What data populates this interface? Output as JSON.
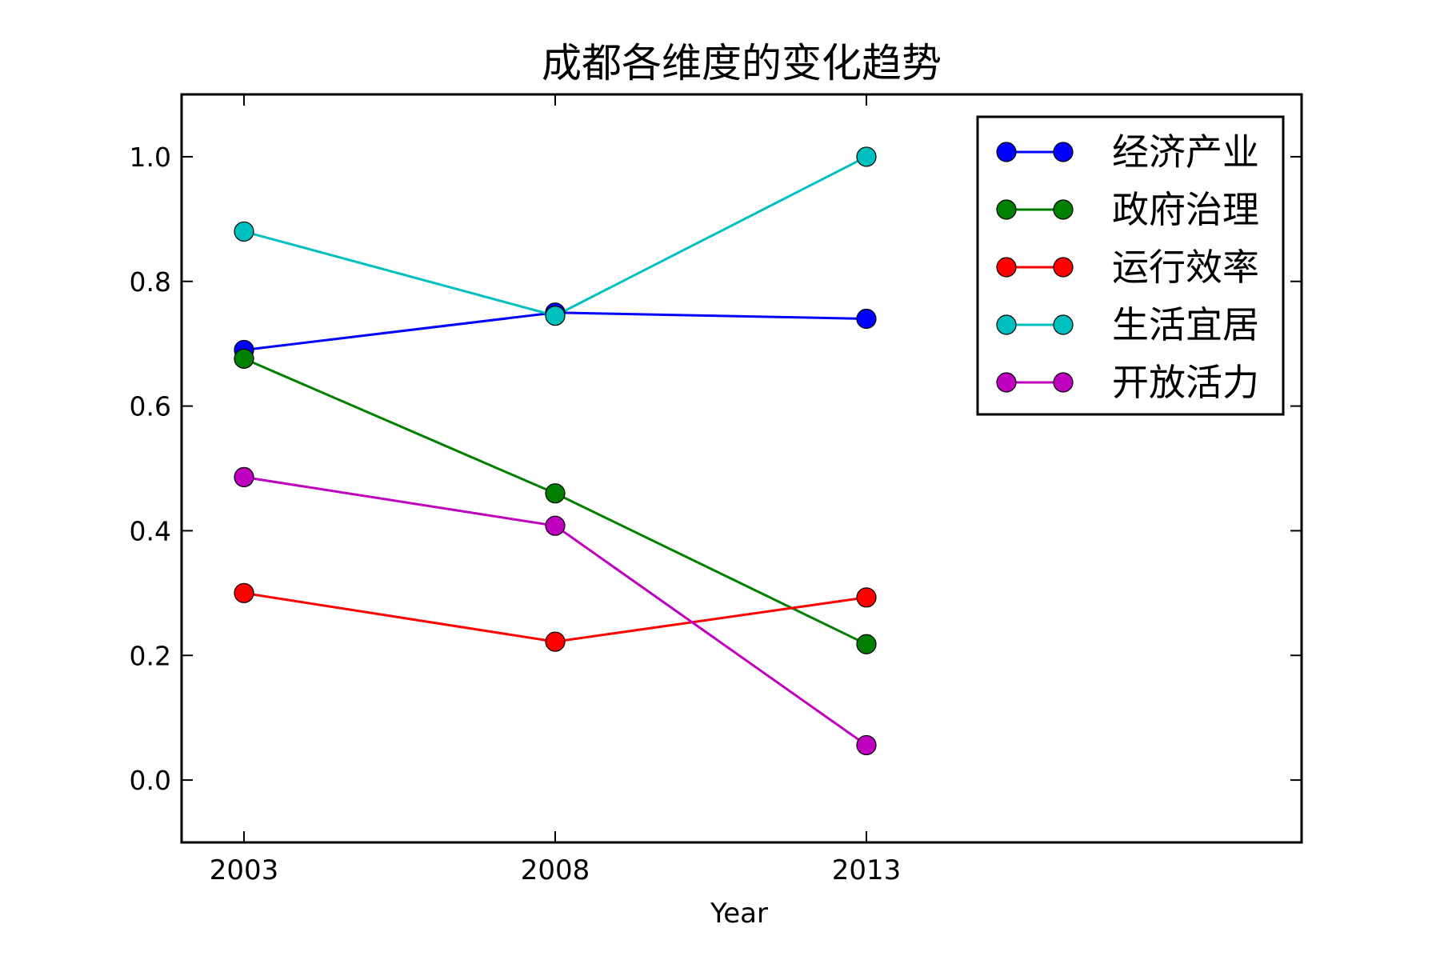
{
  "chart_data": {
    "type": "line",
    "title": "成都各维度的变化趋势",
    "xlabel": "Year",
    "ylabel": "",
    "categories": [
      "2003",
      "2008",
      "2013"
    ],
    "ylim": [
      -0.1,
      1.1
    ],
    "yticks": [
      "0.0",
      "0.2",
      "0.4",
      "0.6",
      "0.8",
      "1.0"
    ],
    "yticks_values": [
      0.0,
      0.2,
      0.4,
      0.6,
      0.8,
      1.0
    ],
    "legend_position": "top-right",
    "series": [
      {
        "name": "经济产业",
        "color": "#0000ff",
        "values": [
          0.69,
          0.75,
          0.74
        ]
      },
      {
        "name": "政府治理",
        "color": "#008000",
        "values": [
          0.676,
          0.46,
          0.218
        ]
      },
      {
        "name": "运行效率",
        "color": "#ff0000",
        "values": [
          0.3,
          0.222,
          0.293
        ]
      },
      {
        "name": "生活宜居",
        "color": "#00bfbf",
        "values": [
          0.88,
          0.745,
          1.0
        ]
      },
      {
        "name": "开放活力",
        "color": "#bf00bf",
        "values": [
          0.486,
          0.408,
          0.056
        ]
      }
    ]
  }
}
